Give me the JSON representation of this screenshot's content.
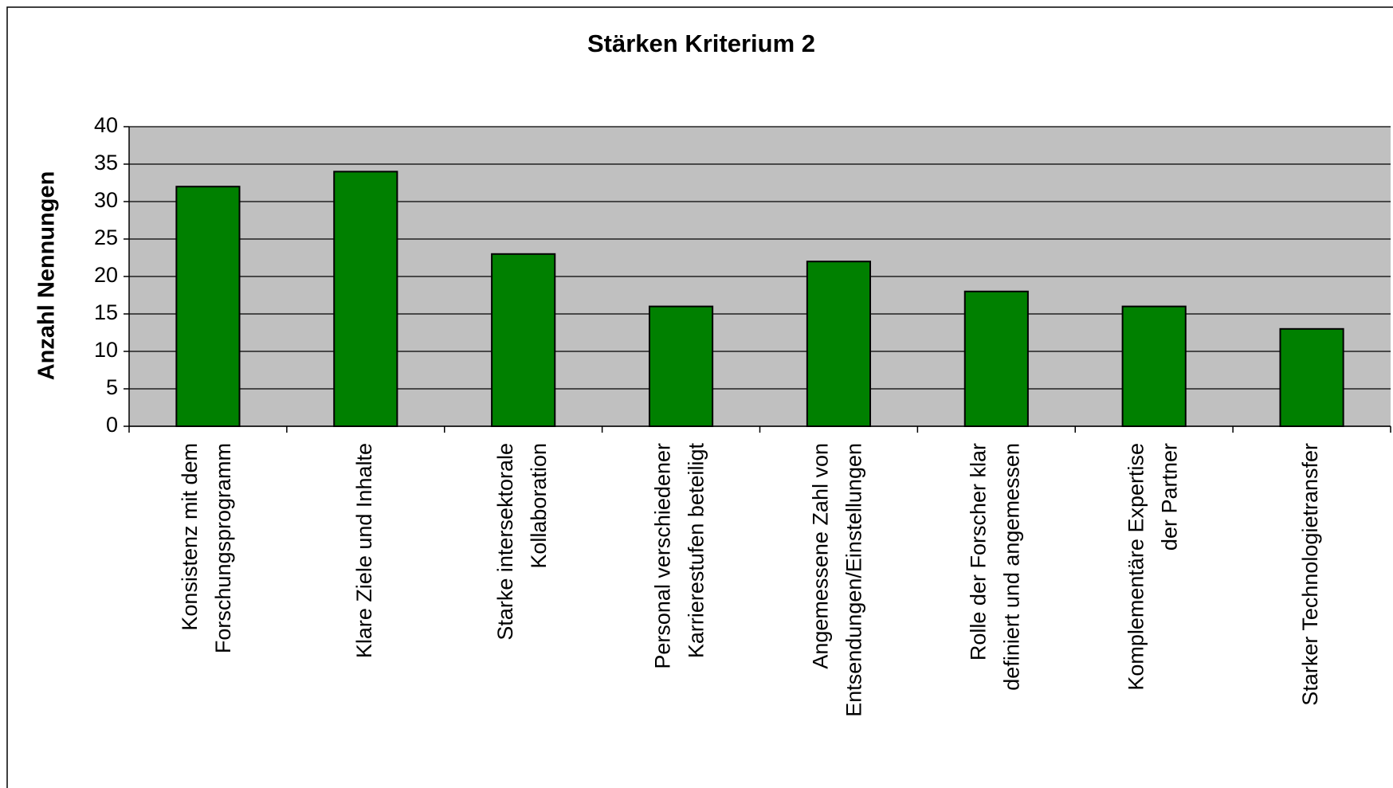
{
  "chart_data": {
    "type": "bar",
    "title": "Stärken Kriterium 2",
    "y_label": "Anzahl Nennungen",
    "categories": [
      [
        "Konsistenz mit dem",
        "Forschungsprogramm"
      ],
      [
        "Klare Ziele und Inhalte"
      ],
      [
        "Starke intersektorale",
        "Kollaboration"
      ],
      [
        "Personal verschiedener",
        "Karrierestufen beteiligt"
      ],
      [
        "Angemessene Zahl von",
        "Entsendungen/Einstellungen"
      ],
      [
        "Rolle der Forscher klar",
        "definiert und angemessen"
      ],
      [
        "Komplementäre Expertise",
        "der Partner"
      ],
      [
        "Starker Technologietransfer"
      ]
    ],
    "values": [
      32,
      34,
      23,
      16,
      22,
      18,
      16,
      13
    ],
    "color": "#008000",
    "plot_background": "#c0c0c0",
    "ylim": [
      0,
      40
    ],
    "yticks": [
      0,
      5,
      10,
      15,
      20,
      25,
      30,
      35,
      40
    ],
    "grid": true
  }
}
